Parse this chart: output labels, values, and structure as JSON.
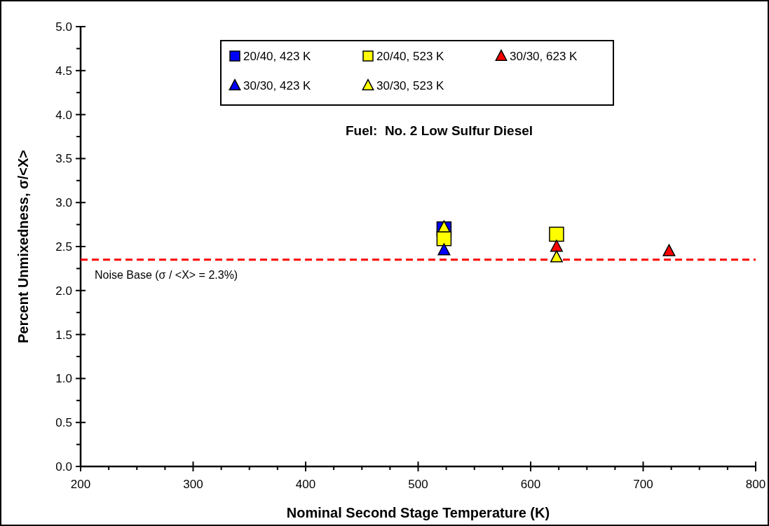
{
  "chart_data": {
    "type": "scatter",
    "xlabel": "Nominal Second Stage Temperature (K)",
    "ylabel": "Percent Unmixedness, σ/<X>",
    "annotations": [
      "Fuel:  No. 2 Low Sulfur Diesel"
    ],
    "xlim": [
      200,
      800
    ],
    "ylim": [
      0,
      5
    ],
    "xticks": [
      200,
      {
        "value": 225,
        "label": null
      },
      {
        "value": 250,
        "label": null
      },
      {
        "value": 275,
        "label": null
      },
      300,
      {
        "value": 325,
        "label": null
      },
      {
        "value": 350,
        "label": null
      },
      {
        "value": 375,
        "label": null
      },
      400,
      {
        "value": 425,
        "label": null
      },
      {
        "value": 450,
        "label": null
      },
      {
        "value": 475,
        "label": null
      },
      500,
      {
        "value": 525,
        "label": null
      },
      {
        "value": 550,
        "label": null
      },
      {
        "value": 575,
        "label": null
      },
      600,
      {
        "value": 625,
        "label": null
      },
      {
        "value": 650,
        "label": null
      },
      {
        "value": 675,
        "label": null
      },
      700,
      {
        "value": 725,
        "label": null
      },
      {
        "value": 750,
        "label": null
      },
      {
        "value": 775,
        "label": null
      },
      800
    ],
    "yticks": [
      {
        "value": 0,
        "label": "0.0"
      },
      {
        "value": 0.25,
        "label": null
      },
      {
        "value": 0.5,
        "label": "0.5"
      },
      {
        "value": 0.75,
        "label": null
      },
      {
        "value": 1,
        "label": "1.0"
      },
      {
        "value": 1.25,
        "label": null
      },
      {
        "value": 1.5,
        "label": "1.5"
      },
      {
        "value": 1.75,
        "label": null
      },
      {
        "value": 2,
        "label": "2.0"
      },
      {
        "value": 2.25,
        "label": null
      },
      {
        "value": 2.5,
        "label": "2.5"
      },
      {
        "value": 2.75,
        "label": null
      },
      {
        "value": 3,
        "label": "3.0"
      },
      {
        "value": 3.25,
        "label": null
      },
      {
        "value": 3.5,
        "label": "3.5"
      },
      {
        "value": 3.75,
        "label": null
      },
      {
        "value": 4,
        "label": "4.0"
      },
      {
        "value": 4.25,
        "label": null
      },
      {
        "value": 4.5,
        "label": "4.5"
      },
      {
        "value": 4.75,
        "label": null
      },
      {
        "value": 5,
        "label": "5.0"
      }
    ],
    "grid": false,
    "legend": "top",
    "ref_lines": [
      {
        "axis": "y",
        "value": 2.35,
        "label": "Noise Base (σ / <X> = 2.3%)",
        "color": "#ff0000",
        "line_style": "dashed"
      }
    ],
    "series": [
      {
        "name": "20/40, 423 K",
        "color": "#0000ff",
        "marker": "square",
        "x": [
          523
        ],
        "values": [
          2.7
        ]
      },
      {
        "name": "20/40, 523 K",
        "color": "#ffff00",
        "marker": "square",
        "x": [
          523,
          623
        ],
        "values": [
          2.59,
          2.64
        ]
      },
      {
        "name": "30/30, 623 K",
        "color": "#ff0000",
        "marker": "triangle",
        "x": [
          623,
          723
        ],
        "values": [
          2.5,
          2.45
        ]
      },
      {
        "name": "30/30, 423 K",
        "color": "#0000ff",
        "marker": "triangle",
        "x": [
          523
        ],
        "values": [
          2.46
        ]
      },
      {
        "name": "30/30, 523 K",
        "color": "#ffff00",
        "marker": "triangle",
        "x": [
          523,
          623
        ],
        "values": [
          2.72,
          2.38
        ]
      }
    ]
  }
}
